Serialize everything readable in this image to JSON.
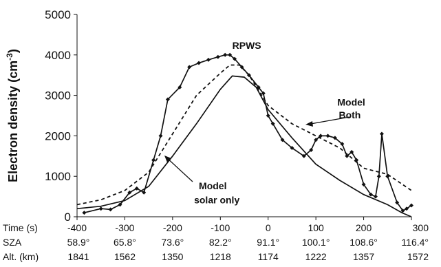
{
  "chart_data": {
    "type": "line",
    "ylabel": "Electron density (cm",
    "ylabel_sup": "-3",
    "ylabel_close": ")",
    "ylim": [
      0,
      5000
    ],
    "yticks": [
      "0",
      "1000",
      "2000",
      "3000",
      "4000",
      "5000"
    ],
    "xlim": [
      -400,
      300
    ],
    "grid": false,
    "rows": {
      "time": {
        "label": "Time (s)",
        "ticks": [
          {
            "x": -400,
            "label": "-400"
          },
          {
            "x": -300,
            "label": "-300"
          },
          {
            "x": -200,
            "label": "-200"
          },
          {
            "x": -100,
            "label": "-100"
          },
          {
            "x": 0,
            "label": "0"
          },
          {
            "x": 100,
            "label": "100"
          },
          {
            "x": 200,
            "label": "200"
          },
          {
            "x": 300,
            "label": "300"
          }
        ]
      },
      "sza": {
        "label": "SZA",
        "values": [
          "58.9°",
          "65.8°",
          "73.6°",
          "82.2°",
          "91.1°",
          "100.1°",
          "108.6°",
          "116.4°"
        ]
      },
      "alt": {
        "label": "Alt. (km)",
        "values": [
          "1841",
          "1562",
          "1350",
          "1218",
          "1174",
          "1222",
          "1357",
          "1572"
        ]
      }
    },
    "series": [
      {
        "name": "RPWS",
        "style": "solid-markers",
        "color": "#111111",
        "x": [
          -385,
          -350,
          -330,
          -310,
          -290,
          -275,
          -260,
          -240,
          -225,
          -210,
          -185,
          -165,
          -145,
          -125,
          -105,
          -90,
          -80,
          -70,
          -55,
          -40,
          -20,
          -10,
          0,
          10,
          30,
          50,
          75,
          90,
          100,
          110,
          125,
          140,
          155,
          165,
          175,
          185,
          200,
          215,
          225,
          232,
          238,
          250,
          270,
          282,
          290,
          300
        ],
        "y": [
          100,
          200,
          180,
          300,
          600,
          700,
          600,
          1400,
          2000,
          2900,
          3200,
          3700,
          3800,
          3880,
          3950,
          4000,
          4000,
          3900,
          3700,
          3500,
          3200,
          3050,
          2500,
          2300,
          1900,
          1700,
          1500,
          1650,
          1900,
          2000,
          2000,
          1950,
          1800,
          1500,
          1600,
          1400,
          800,
          550,
          500,
          1000,
          2050,
          1000,
          350,
          150,
          200,
          280
        ]
      },
      {
        "name": "Model Both",
        "style": "dashed",
        "color": "#111111",
        "x": [
          -400,
          -350,
          -300,
          -250,
          -200,
          -150,
          -100,
          -80,
          -60,
          -40,
          0,
          50,
          100,
          150,
          200,
          250,
          300
        ],
        "y": [
          300,
          420,
          650,
          1100,
          2050,
          3000,
          3550,
          3750,
          3750,
          3500,
          2750,
          2300,
          2000,
          1700,
          1200,
          1050,
          650
        ]
      },
      {
        "name": "Model solar only",
        "style": "solid",
        "color": "#111111",
        "x": [
          -400,
          -350,
          -300,
          -250,
          -200,
          -150,
          -100,
          -75,
          -50,
          -25,
          0,
          50,
          100,
          150,
          200,
          250,
          280,
          300
        ],
        "y": [
          200,
          260,
          400,
          750,
          1500,
          2300,
          3150,
          3480,
          3450,
          3200,
          2650,
          1950,
          1300,
          900,
          550,
          300,
          100,
          0
        ]
      }
    ],
    "annotations": [
      {
        "text": "RPWS",
        "x": -75,
        "y": 4150
      },
      {
        "text": "Model",
        "x": 145,
        "y": 2750
      },
      {
        "text": "Both",
        "x": 148,
        "y": 2430
      },
      {
        "text": "Model",
        "x": -145,
        "y": 680
      },
      {
        "text": "solar only",
        "x": -155,
        "y": 330
      }
    ]
  }
}
